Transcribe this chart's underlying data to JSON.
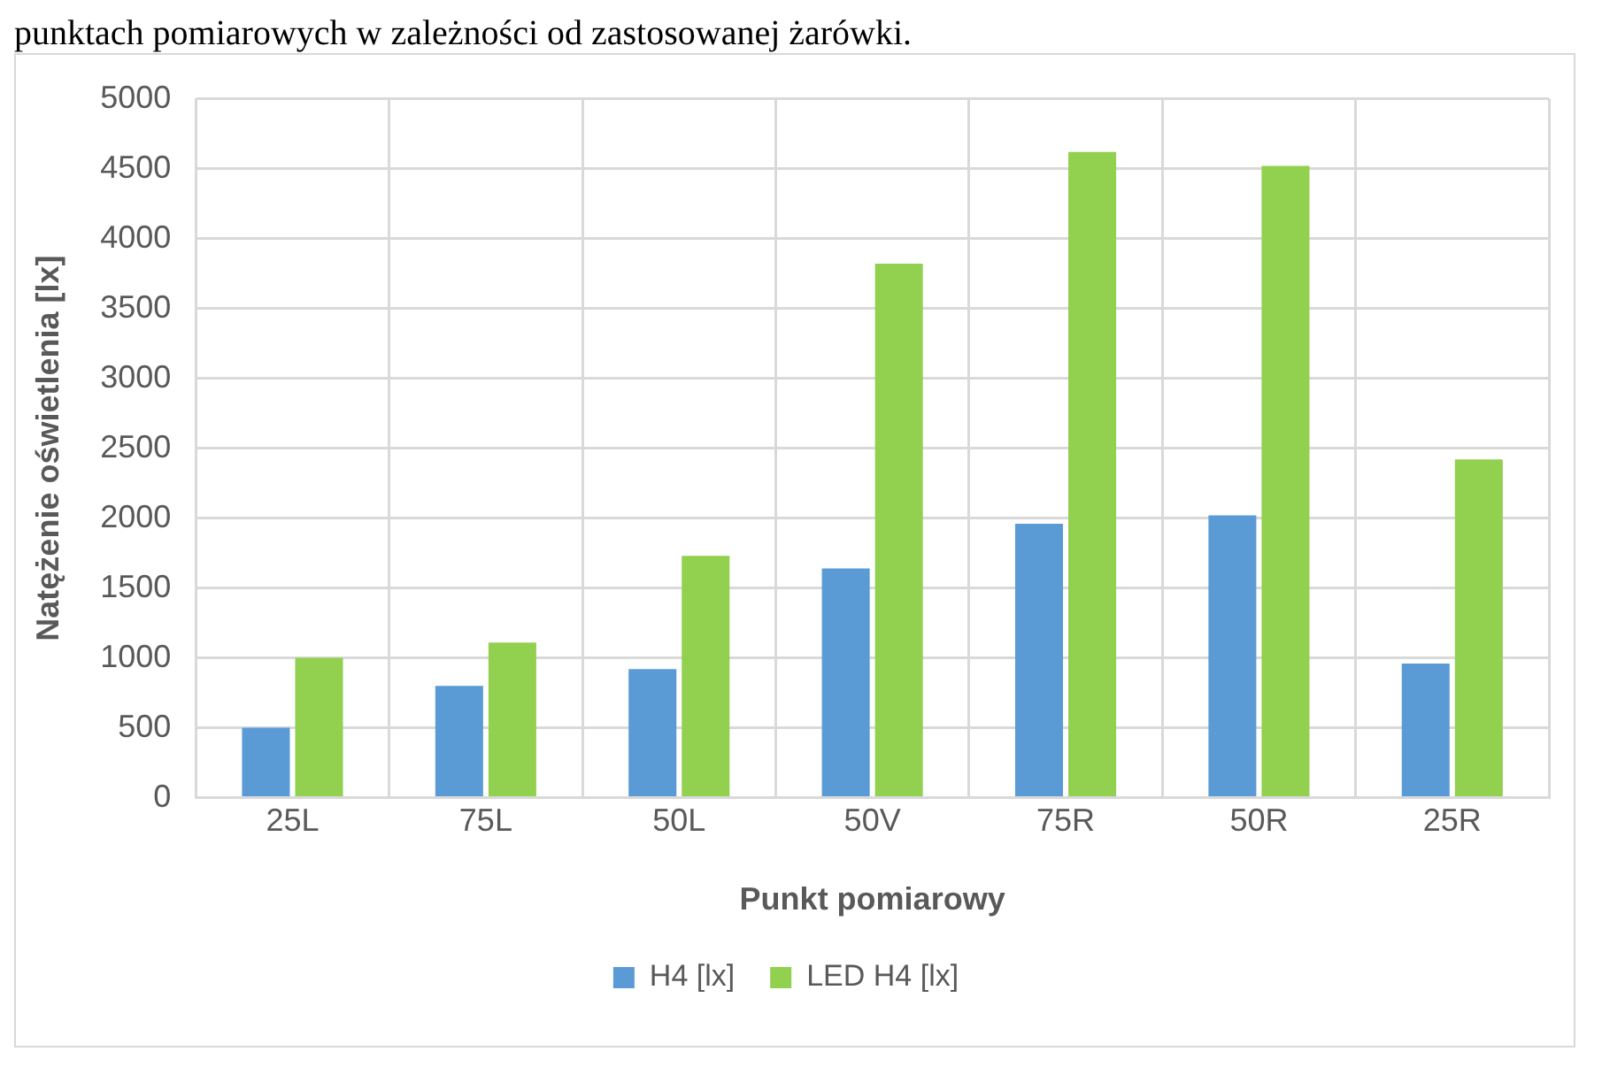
{
  "chart_data": {
    "type": "bar",
    "annotations": [
      "punktach pomiarowych w zależności od zastosowanej żarówki."
    ],
    "xlabel": "Punkt pomiarowy",
    "ylabel": "Natężenie oświetlenia [lx]",
    "categories": [
      "25L",
      "75L",
      "50L",
      "50V",
      "75R",
      "50R",
      "25R"
    ],
    "series": [
      {
        "name": "H4 [lx]",
        "color": "#5b9bd5",
        "values": [
          500,
          800,
          920,
          1640,
          1960,
          2020,
          960
        ]
      },
      {
        "name": "LED H4 [lx]",
        "color": "#92d050",
        "values": [
          1000,
          1110,
          1730,
          3820,
          4620,
          4520,
          2420
        ]
      }
    ],
    "ylim": [
      0,
      5000
    ],
    "yticks": [
      0,
      500,
      1000,
      1500,
      2000,
      2500,
      3000,
      3500,
      4000,
      4500,
      5000
    ],
    "grid": true,
    "legend": "bottom"
  }
}
